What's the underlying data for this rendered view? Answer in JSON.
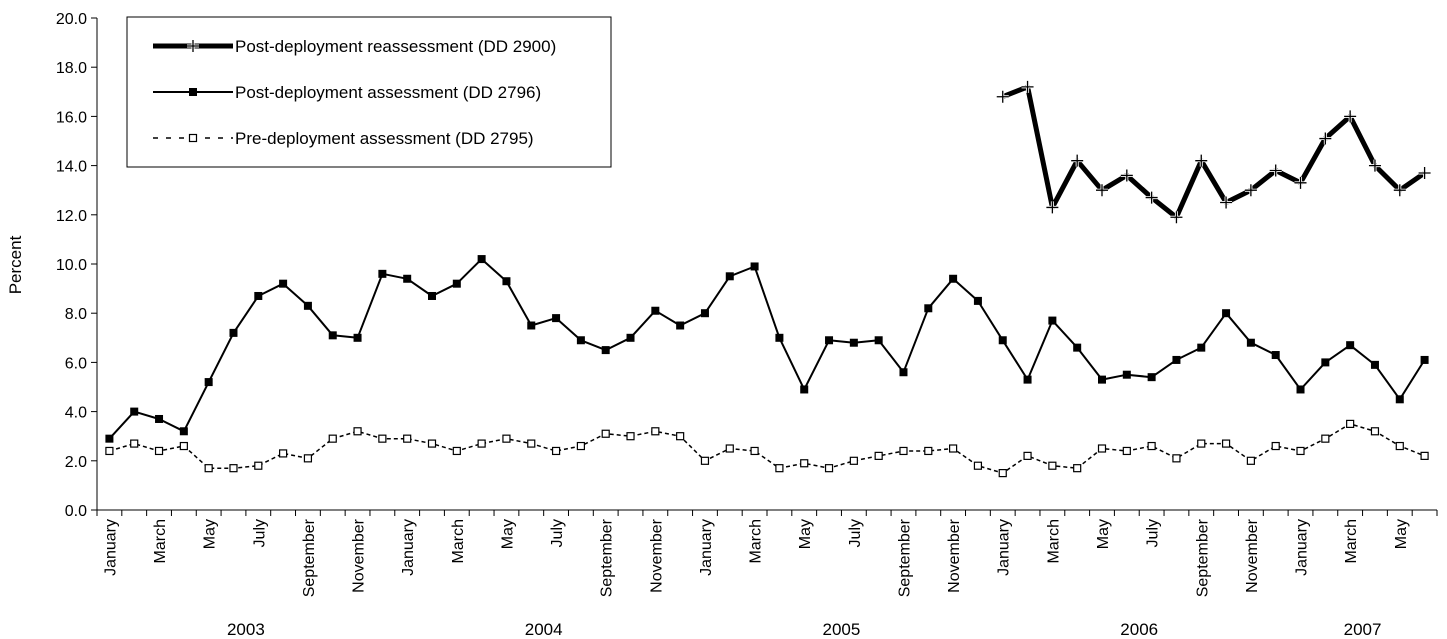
{
  "chart_data": {
    "type": "line",
    "title": "",
    "xlabel": "",
    "ylabel": "Percent",
    "ylim": [
      0,
      20
    ],
    "yticks": [
      "0.0",
      "2.0",
      "4.0",
      "6.0",
      "8.0",
      "10.0",
      "12.0",
      "14.0",
      "16.0",
      "18.0",
      "20.0"
    ],
    "grid": false,
    "legend_position": "top-left",
    "month_labels": [
      "January",
      "March",
      "May",
      "July",
      "September",
      "November"
    ],
    "years": [
      "2003",
      "2004",
      "2005",
      "2006",
      "2007"
    ],
    "x": [
      "2003-01",
      "2003-02",
      "2003-03",
      "2003-04",
      "2003-05",
      "2003-06",
      "2003-07",
      "2003-08",
      "2003-09",
      "2003-10",
      "2003-11",
      "2003-12",
      "2004-01",
      "2004-02",
      "2004-03",
      "2004-04",
      "2004-05",
      "2004-06",
      "2004-07",
      "2004-08",
      "2004-09",
      "2004-10",
      "2004-11",
      "2004-12",
      "2005-01",
      "2005-02",
      "2005-03",
      "2005-04",
      "2005-05",
      "2005-06",
      "2005-07",
      "2005-08",
      "2005-09",
      "2005-10",
      "2005-11",
      "2005-12",
      "2006-01",
      "2006-02",
      "2006-03",
      "2006-04",
      "2006-05",
      "2006-06",
      "2006-07",
      "2006-08",
      "2006-09",
      "2006-10",
      "2006-11",
      "2006-12",
      "2007-01",
      "2007-02",
      "2007-03",
      "2007-04",
      "2007-05",
      "2007-06"
    ],
    "series": [
      {
        "name": "Post-deployment reassessment (DD 2900)",
        "style": "thick-plus",
        "color": "#000000",
        "values": [
          null,
          null,
          null,
          null,
          null,
          null,
          null,
          null,
          null,
          null,
          null,
          null,
          null,
          null,
          null,
          null,
          null,
          null,
          null,
          null,
          null,
          null,
          null,
          null,
          null,
          null,
          null,
          null,
          null,
          null,
          null,
          null,
          null,
          null,
          null,
          null,
          16.8,
          17.2,
          12.3,
          14.2,
          13.0,
          13.6,
          12.7,
          11.9,
          14.2,
          12.5,
          13.0,
          13.8,
          13.3,
          15.1,
          16.0,
          14.0,
          13.0,
          13.7
        ]
      },
      {
        "name": "Post-deployment assessment (DD 2796)",
        "style": "solid-square",
        "color": "#000000",
        "values": [
          2.9,
          4.0,
          3.7,
          3.2,
          5.2,
          7.2,
          8.7,
          9.2,
          8.3,
          7.1,
          7.0,
          9.6,
          9.4,
          8.7,
          9.2,
          10.2,
          9.3,
          7.5,
          7.8,
          6.9,
          6.5,
          7.0,
          8.1,
          7.5,
          8.0,
          9.5,
          9.9,
          7.0,
          4.9,
          6.9,
          6.8,
          6.9,
          5.6,
          8.2,
          9.4,
          8.5,
          6.9,
          5.3,
          7.7,
          6.6,
          5.3,
          5.5,
          5.4,
          6.1,
          6.6,
          8.0,
          6.8,
          6.3,
          4.9,
          6.0,
          6.7,
          5.9,
          4.5,
          6.1
        ]
      },
      {
        "name": "Pre-deployment assessment (DD 2795)",
        "style": "dashed-open-square",
        "color": "#000000",
        "values": [
          2.4,
          2.7,
          2.4,
          2.6,
          1.7,
          1.7,
          1.8,
          2.3,
          2.1,
          2.9,
          3.2,
          2.9,
          2.9,
          2.7,
          2.4,
          2.7,
          2.9,
          2.7,
          2.4,
          2.6,
          3.1,
          3.0,
          3.2,
          3.0,
          2.0,
          2.5,
          2.4,
          1.7,
          1.9,
          1.7,
          2.0,
          2.2,
          2.4,
          2.4,
          2.5,
          1.8,
          1.5,
          2.2,
          1.8,
          1.7,
          2.5,
          2.4,
          2.6,
          2.1,
          2.7,
          2.7,
          2.0,
          2.6,
          2.4,
          2.9,
          3.5,
          3.2,
          2.6,
          2.2
        ]
      }
    ]
  }
}
